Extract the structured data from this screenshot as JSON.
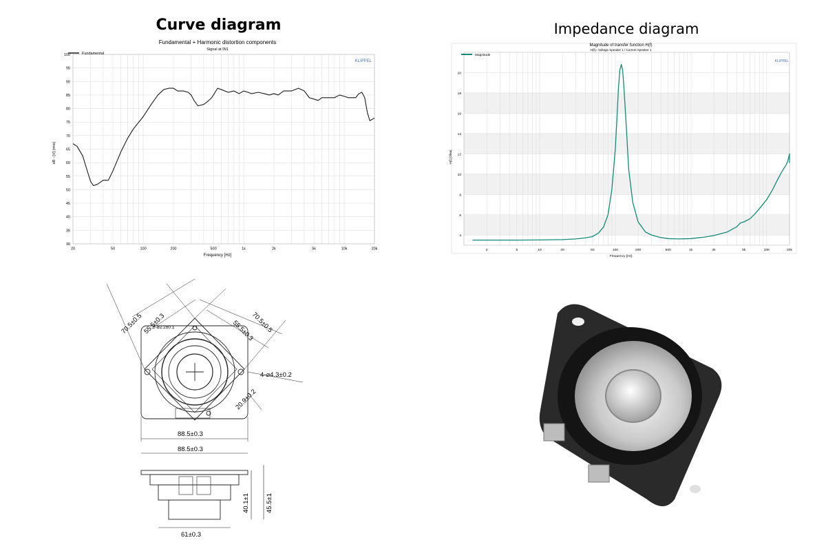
{
  "headings": {
    "curve": "Curve diagram",
    "impedance": "Impedance diagram"
  },
  "chart_data": [
    {
      "type": "line",
      "title": "Fundamental + Harmonic distortion components",
      "subtitle": "Signal at IN1",
      "brand": "KLIPPEL",
      "xlabel": "Frequency [Hz]",
      "ylabel": "dB - [V] (rms)",
      "x_scale": "log",
      "xlim": [
        20,
        20000
      ],
      "ylim": [
        30,
        100
      ],
      "x_ticks": [
        20,
        50,
        100,
        200,
        500,
        1000,
        2000,
        5000,
        10000,
        20000
      ],
      "x_tick_labels": [
        "20",
        "50",
        "100",
        "200",
        "500",
        "1k",
        "2k",
        "5k",
        "10k",
        "20k"
      ],
      "y_ticks": [
        30,
        35,
        40,
        45,
        50,
        55,
        60,
        65,
        70,
        75,
        80,
        85,
        90,
        95,
        100
      ],
      "grid": true,
      "legend_position": "top-left",
      "series": [
        {
          "name": "Fundamental",
          "color": "#1a1a1a",
          "x": [
            20,
            22,
            25,
            28,
            30,
            32,
            35,
            40,
            45,
            50,
            60,
            70,
            80,
            100,
            120,
            140,
            160,
            180,
            200,
            220,
            250,
            280,
            300,
            320,
            350,
            400,
            450,
            480,
            500,
            550,
            600,
            700,
            800,
            900,
            1000,
            1100,
            1200,
            1400,
            1600,
            1800,
            2000,
            2200,
            2500,
            3000,
            3500,
            4000,
            4500,
            5000,
            5500,
            6000,
            7000,
            8000,
            9000,
            10000,
            11000,
            12000,
            13000,
            14000,
            15000,
            16000,
            17000,
            18000,
            19000,
            20000
          ],
          "y": [
            67,
            66,
            62.5,
            56.5,
            53,
            51.5,
            52,
            53.5,
            53.5,
            57,
            64,
            69,
            72.5,
            77,
            81.5,
            85,
            87,
            87.5,
            87.5,
            86.5,
            86.5,
            86,
            85,
            83,
            81,
            81.5,
            83,
            84,
            85,
            87.5,
            87,
            86,
            86.5,
            85.5,
            86.5,
            86,
            85.5,
            86,
            85.5,
            85,
            85.5,
            85,
            86.5,
            86.5,
            87.5,
            86.5,
            84,
            83.5,
            83,
            84,
            84,
            84,
            85,
            84.5,
            84,
            84,
            84,
            85.5,
            86,
            84,
            78.5,
            75.5,
            76,
            76.5
          ]
        }
      ]
    },
    {
      "type": "line",
      "title": "Magnitude of transfer function H(f)",
      "subtitle": "H(f)= Voltage Speaker 1 / Current Speaker 1",
      "brand": "KLIPPEL",
      "xlabel": "Frequency [Hz]",
      "ylabel": "H(f) [Ohm]",
      "x_scale": "log",
      "xlim": [
        1,
        20000
      ],
      "ylim": [
        3,
        22
      ],
      "x_ticks": [
        2,
        5,
        10,
        20,
        50,
        100,
        200,
        500,
        1000,
        2000,
        5000,
        10000,
        20000
      ],
      "x_tick_labels": [
        "2",
        "5",
        "10",
        "20",
        "50",
        "100",
        "200",
        "500",
        "1k",
        "2k",
        "5k",
        "10K",
        "20k"
      ],
      "y_ticks": [
        4,
        6,
        8,
        10,
        12,
        14,
        16,
        18,
        20
      ],
      "grid": true,
      "legend_position": "top-left",
      "series": [
        {
          "name": "Magnitude",
          "color": "#138a78",
          "x": [
            1.3,
            2,
            5,
            10,
            20,
            30,
            40,
            50,
            60,
            70,
            80,
            90,
            100,
            105,
            110,
            115,
            120,
            125,
            130,
            140,
            150,
            170,
            200,
            250,
            300,
            400,
            500,
            700,
            1000,
            1500,
            2000,
            3000,
            4000,
            4500,
            5000,
            6000,
            7000,
            8000,
            10000,
            12000,
            14000,
            16000,
            18000,
            19000,
            20000,
            20000
          ],
          "y": [
            3.5,
            3.5,
            3.5,
            3.52,
            3.55,
            3.62,
            3.72,
            3.85,
            4.2,
            4.8,
            6.0,
            8.5,
            12.5,
            15.5,
            18.5,
            20.3,
            20.8,
            20.2,
            18.5,
            14.5,
            10.5,
            7.2,
            5.3,
            4.3,
            4.0,
            3.75,
            3.65,
            3.62,
            3.65,
            3.8,
            3.95,
            4.3,
            4.8,
            5.2,
            5.3,
            5.6,
            6.1,
            6.6,
            7.5,
            8.5,
            9.5,
            10.3,
            10.9,
            11.3,
            12.0,
            11.1
          ]
        }
      ]
    }
  ],
  "drawing": {
    "dim_outer_left": "70.5±0.5",
    "dim_inner_left": "55.5±0.3",
    "dim_outer_right": "70.5±0.5",
    "dim_inner_right": "55.5±0.3",
    "dim_hole_small": "2-⌀2.2±0.1",
    "dim_holes": "4-⌀4.3±0.2",
    "dim_corner": "20.9±0.2",
    "dim_width_front": "88.5±0.3",
    "dim_width_side": "88.5±0.3",
    "dim_depth_inner": "40.1±1",
    "dim_depth_total": "45.5±1",
    "dim_magnet": "61±0.3"
  }
}
